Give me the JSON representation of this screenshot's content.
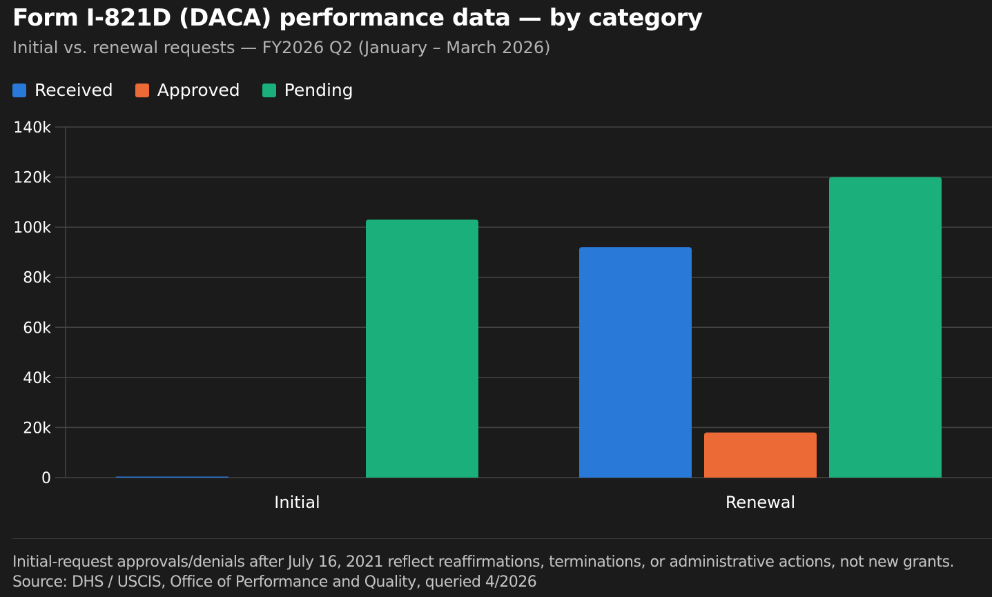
{
  "header": {
    "title": "Form I-821D (DACA) performance data — by category",
    "subtitle": "Initial vs. renewal requests — FY2026 Q2 (January – March 2026)"
  },
  "colors": {
    "received": "#2979d8",
    "approved": "#ec6a35",
    "pending": "#1bb07b",
    "background": "#1b1b1b",
    "grid": "#444444"
  },
  "chart_data": {
    "type": "bar",
    "title": "Form I-821D (DACA) performance data — by category",
    "subtitle": "Initial vs. renewal requests — FY2026 Q2 (January – March 2026)",
    "categories": [
      "Initial",
      "Renewal"
    ],
    "series": [
      {
        "name": "Received",
        "color": "#2979d8",
        "values": [
          200,
          92000
        ]
      },
      {
        "name": "Approved",
        "color": "#ec6a35",
        "values": [
          0,
          18000
        ]
      },
      {
        "name": "Pending",
        "color": "#1bb07b",
        "values": [
          103000,
          120000
        ]
      }
    ],
    "y_ticks": [
      0,
      20000,
      40000,
      60000,
      80000,
      100000,
      120000,
      140000
    ],
    "y_tick_labels": [
      "0",
      "20k",
      "40k",
      "60k",
      "80k",
      "100k",
      "120k",
      "140k"
    ],
    "ylim": [
      0,
      140000
    ],
    "xlabel": "",
    "ylabel": "",
    "grid": true,
    "legend": "top-left"
  },
  "footer": {
    "note": "Initial-request approvals/denials after July 16, 2021 reflect reaffirmations, terminations, or administrative actions, not new grants.",
    "source": "Source: DHS / USCIS, Office of Performance and Quality, queried 4/2026"
  }
}
